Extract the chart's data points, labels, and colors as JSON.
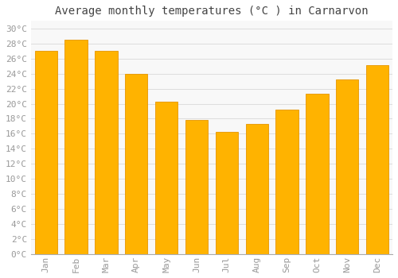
{
  "title": "Average monthly temperatures (°C ) in Carnarvon",
  "months": [
    "Jan",
    "Feb",
    "Mar",
    "Apr",
    "May",
    "Jun",
    "Jul",
    "Aug",
    "Sep",
    "Oct",
    "Nov",
    "Dec"
  ],
  "values": [
    27.0,
    28.5,
    27.0,
    24.0,
    20.3,
    17.8,
    16.3,
    17.3,
    19.2,
    21.3,
    23.2,
    25.1
  ],
  "bar_color": "#FFB300",
  "bar_edge_color": "#E69500",
  "ylim": [
    0,
    31
  ],
  "yticks": [
    0,
    2,
    4,
    6,
    8,
    10,
    12,
    14,
    16,
    18,
    20,
    22,
    24,
    26,
    28,
    30
  ],
  "background_color": "#FFFFFF",
  "plot_bg_color": "#F8F8F8",
  "grid_color": "#DDDDDD",
  "title_fontsize": 10,
  "tick_fontsize": 8,
  "tick_color": "#999999",
  "title_color": "#444444",
  "font_family": "monospace"
}
